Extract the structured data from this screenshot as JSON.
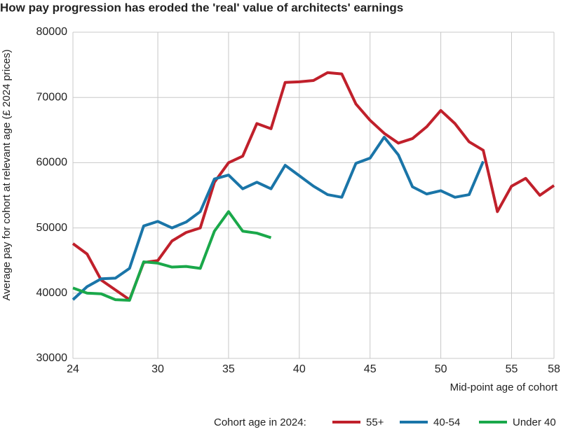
{
  "chart_data": {
    "type": "line",
    "title": "How pay progression has eroded the 'real' value of architects' earnings",
    "y_label": "Average pay for cohort at relevant age (£ 2024 prices)",
    "x_label": "Mid-point age of cohort",
    "legend_title": "Cohort age in 2024:",
    "x": [
      24,
      25,
      26,
      27,
      28,
      29,
      30,
      31,
      32,
      33,
      34,
      35,
      36,
      37,
      38,
      39,
      40,
      41,
      42,
      43,
      44,
      45,
      46,
      47,
      48,
      49,
      50,
      51,
      52,
      53,
      54,
      55,
      56,
      57,
      58
    ],
    "series": [
      {
        "name": "55+",
        "color": "#c0202b",
        "values": [
          47600,
          46000,
          42000,
          40500,
          39000,
          44700,
          45000,
          48000,
          49300,
          50000,
          57000,
          60000,
          61000,
          66000,
          65200,
          72300,
          72400,
          72600,
          73800,
          73600,
          69000,
          66500,
          64500,
          63000,
          63700,
          65500,
          68000,
          66000,
          63200,
          61900,
          52500,
          56400,
          57600,
          55000,
          56500
        ]
      },
      {
        "name": "40-54",
        "color": "#1a75a8",
        "values": [
          39000,
          41000,
          42200,
          42300,
          43800,
          50300,
          51000,
          50000,
          50900,
          52500,
          57500,
          58100,
          56000,
          57000,
          56000,
          59600,
          58000,
          56400,
          55100,
          54700,
          59900,
          60700,
          63900,
          61200,
          56300,
          55200,
          55700,
          54700,
          55100,
          60200,
          null,
          null,
          null,
          null,
          null
        ]
      },
      {
        "name": "Under 40",
        "color": "#1aa84a",
        "values": [
          40800,
          40000,
          39900,
          39000,
          38900,
          44800,
          44600,
          44000,
          44100,
          43800,
          49500,
          52500,
          49500,
          49200,
          48500,
          null,
          null,
          null,
          null,
          null,
          null,
          null,
          null,
          null,
          null,
          null,
          null,
          null,
          null,
          null,
          null,
          null,
          null,
          null,
          null
        ]
      }
    ],
    "xlim": [
      24,
      58
    ],
    "xticks": [
      24,
      30,
      35,
      40,
      45,
      50,
      55,
      58
    ],
    "ylim": [
      30000,
      80000
    ],
    "yticks": [
      30000,
      40000,
      50000,
      60000,
      70000,
      80000
    ],
    "grid": true,
    "legend": "bottom"
  }
}
